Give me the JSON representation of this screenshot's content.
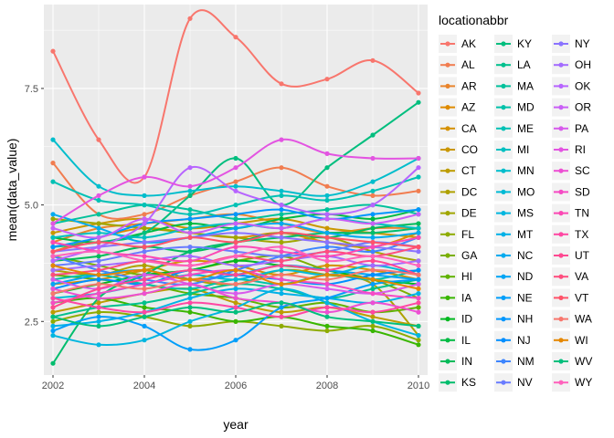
{
  "chart_data": {
    "type": "line",
    "xlabel": "year",
    "ylabel": "mean(data_value)",
    "xlim": [
      2001.8,
      2010.2
    ],
    "ylim": [
      1.35,
      9.3
    ],
    "x_ticks": [
      2002,
      2004,
      2006,
      2008,
      2010
    ],
    "x_tick_labels": [
      "2002",
      "2004",
      "2006",
      "2008",
      "2010"
    ],
    "y_ticks": [
      2.5,
      5.0,
      7.5
    ],
    "y_tick_labels": [
      "2.5",
      "5.0",
      "7.5"
    ],
    "grid": true,
    "legend": {
      "title": "locationabbr",
      "position": "right",
      "columns": 3
    },
    "background": "#ebebeb",
    "x": [
      2002,
      2003,
      2004,
      2005,
      2006,
      2007,
      2008,
      2009,
      2010
    ],
    "series": [
      {
        "name": "AK",
        "color": "#F8766D",
        "values": [
          8.3,
          6.4,
          5.6,
          9.0,
          8.6,
          7.6,
          7.7,
          8.1,
          7.4
        ]
      },
      {
        "name": "AL",
        "color": "#F17D50",
        "values": [
          5.9,
          4.8,
          4.8,
          5.2,
          5.5,
          5.8,
          5.4,
          5.2,
          5.3
        ]
      },
      {
        "name": "AR",
        "color": "#E9842C",
        "values": [
          4.2,
          4.5,
          4.6,
          4.7,
          4.8,
          4.6,
          4.4,
          4.5,
          4.5
        ]
      },
      {
        "name": "AZ",
        "color": "#DF8B00",
        "values": [
          4.0,
          4.3,
          4.5,
          4.4,
          4.3,
          4.4,
          4.2,
          4.1,
          4.4
        ]
      },
      {
        "name": "CA",
        "color": "#D59100",
        "values": [
          3.3,
          3.4,
          3.6,
          3.8,
          3.7,
          3.5,
          3.7,
          3.6,
          3.4
        ]
      },
      {
        "name": "CO",
        "color": "#CA9700",
        "values": [
          4.4,
          4.6,
          4.7,
          4.5,
          4.6,
          4.7,
          4.5,
          4.4,
          4.3
        ]
      },
      {
        "name": "CT",
        "color": "#BD9C00",
        "values": [
          2.7,
          2.9,
          3.1,
          3.2,
          2.9,
          2.7,
          2.8,
          2.6,
          2.4
        ]
      },
      {
        "name": "DC",
        "color": "#AFA100",
        "values": [
          3.6,
          3.5,
          3.7,
          3.4,
          3.3,
          3.6,
          3.5,
          3.3,
          2.2
        ]
      },
      {
        "name": "DE",
        "color": "#A0A600",
        "values": [
          4.7,
          4.6,
          4.5,
          4.4,
          4.3,
          4.2,
          4.3,
          4.0,
          3.8
        ]
      },
      {
        "name": "FL",
        "color": "#8EAB00",
        "values": [
          2.5,
          2.7,
          2.6,
          2.4,
          2.5,
          2.4,
          2.3,
          2.4,
          2.1
        ]
      },
      {
        "name": "GA",
        "color": "#7AAF00",
        "values": [
          3.9,
          3.7,
          3.5,
          3.6,
          3.8,
          3.9,
          3.6,
          3.4,
          3.0
        ]
      },
      {
        "name": "HI",
        "color": "#60B200",
        "values": [
          3.5,
          3.4,
          3.3,
          3.1,
          3.0,
          2.8,
          2.9,
          2.7,
          2.8
        ]
      },
      {
        "name": "IA",
        "color": "#39B600",
        "values": [
          2.9,
          3.0,
          2.8,
          2.7,
          2.5,
          2.6,
          2.4,
          2.3,
          2.0
        ]
      },
      {
        "name": "ID",
        "color": "#00B81F",
        "values": [
          3.1,
          3.3,
          3.5,
          3.6,
          3.8,
          3.7,
          3.6,
          3.4,
          3.3
        ]
      },
      {
        "name": "IL",
        "color": "#00BA42",
        "values": [
          4.3,
          4.2,
          4.4,
          4.6,
          4.5,
          4.7,
          4.8,
          4.7,
          4.9
        ]
      },
      {
        "name": "IN",
        "color": "#00BB5A",
        "values": [
          3.8,
          3.9,
          4.1,
          4.0,
          4.2,
          4.4,
          4.3,
          4.5,
          4.6
        ]
      },
      {
        "name": "KS",
        "color": "#00BD6D",
        "values": [
          1.6,
          3.0,
          3.5,
          4.0,
          4.2,
          4.3,
          4.4,
          4.4,
          4.5
        ]
      },
      {
        "name": "KY",
        "color": "#00BE7E",
        "values": [
          4.1,
          4.2,
          4.4,
          5.2,
          6.0,
          5.0,
          5.8,
          6.5,
          7.2
        ]
      },
      {
        "name": "LA",
        "color": "#00C08D",
        "values": [
          2.6,
          2.8,
          2.9,
          3.1,
          3.3,
          3.2,
          3.0,
          3.2,
          3.4
        ]
      },
      {
        "name": "MA",
        "color": "#00C19B",
        "values": [
          4.6,
          4.8,
          5.0,
          4.9,
          4.7,
          4.8,
          4.9,
          5.0,
          4.8
        ]
      },
      {
        "name": "MD",
        "color": "#00C1A9",
        "values": [
          3.4,
          3.5,
          3.3,
          3.2,
          3.4,
          3.3,
          3.5,
          3.4,
          3.6
        ]
      },
      {
        "name": "ME",
        "color": "#00C1B5",
        "values": [
          5.5,
          5.1,
          5.0,
          4.8,
          5.0,
          5.2,
          5.1,
          5.3,
          5.6
        ]
      },
      {
        "name": "MI",
        "color": "#00C0C1",
        "values": [
          4.3,
          4.4,
          4.3,
          4.5,
          4.6,
          4.5,
          4.7,
          4.6,
          4.5
        ]
      },
      {
        "name": "MN",
        "color": "#00BDCC",
        "values": [
          6.4,
          5.4,
          5.2,
          5.3,
          5.4,
          5.3,
          5.2,
          5.5,
          6.0
        ]
      },
      {
        "name": "MO",
        "color": "#00BAD5",
        "values": [
          3.0,
          3.1,
          3.3,
          3.5,
          3.4,
          3.6,
          3.5,
          3.7,
          3.5
        ]
      },
      {
        "name": "MS",
        "color": "#00B6DF",
        "values": [
          2.2,
          2.0,
          2.1,
          2.5,
          2.8,
          3.2,
          2.9,
          2.5,
          2.2
        ]
      },
      {
        "name": "MT",
        "color": "#00B1E7",
        "values": [
          2.4,
          2.5,
          2.7,
          3.0,
          3.2,
          3.1,
          3.0,
          2.9,
          3.1
        ]
      },
      {
        "name": "NC",
        "color": "#00ABEF",
        "values": [
          4.8,
          4.5,
          4.2,
          4.3,
          4.5,
          4.6,
          4.4,
          4.3,
          4.4
        ]
      },
      {
        "name": "ND",
        "color": "#00A5F5",
        "values": [
          3.3,
          3.5,
          3.6,
          3.4,
          3.5,
          3.7,
          3.6,
          3.5,
          3.4
        ]
      },
      {
        "name": "NE",
        "color": "#009EFA",
        "values": [
          2.3,
          2.6,
          2.4,
          1.9,
          2.1,
          2.8,
          3.0,
          3.3,
          3.4
        ]
      },
      {
        "name": "NH",
        "color": "#0096FE",
        "values": [
          4.1,
          4.3,
          4.6,
          4.7,
          4.8,
          4.9,
          4.7,
          4.8,
          4.9
        ]
      },
      {
        "name": "NJ",
        "color": "#008EFF",
        "values": [
          3.2,
          3.4,
          3.3,
          3.6,
          3.5,
          3.4,
          3.3,
          3.5,
          3.6
        ]
      },
      {
        "name": "NM",
        "color": "#3D85FF",
        "values": [
          3.9,
          3.6,
          3.4,
          3.3,
          3.6,
          3.9,
          4.1,
          4.0,
          4.3
        ]
      },
      {
        "name": "NV",
        "color": "#697CFF",
        "values": [
          3.7,
          3.8,
          4.0,
          4.1,
          4.0,
          3.9,
          4.0,
          4.2,
          4.1
        ]
      },
      {
        "name": "NY",
        "color": "#8A73FF",
        "values": [
          4.0,
          4.1,
          4.2,
          4.3,
          4.4,
          4.3,
          4.2,
          4.1,
          4.0
        ]
      },
      {
        "name": "OH",
        "color": "#A36BFF",
        "values": [
          3.6,
          3.7,
          3.8,
          3.9,
          3.7,
          3.8,
          3.9,
          3.7,
          3.8
        ]
      },
      {
        "name": "OK",
        "color": "#B764FF",
        "values": [
          3.8,
          4.1,
          4.6,
          5.8,
          5.3,
          5.0,
          4.8,
          5.0,
          5.8
        ]
      },
      {
        "name": "OR",
        "color": "#C95FF6",
        "values": [
          4.5,
          4.3,
          4.7,
          4.4,
          4.6,
          4.5,
          4.7,
          4.6,
          4.8
        ]
      },
      {
        "name": "PA",
        "color": "#D75AEC",
        "values": [
          3.4,
          3.2,
          3.5,
          3.3,
          3.1,
          3.3,
          3.2,
          3.1,
          3.3
        ]
      },
      {
        "name": "RI",
        "color": "#E354E1",
        "values": [
          4.6,
          5.2,
          5.6,
          5.4,
          5.8,
          6.4,
          6.1,
          6.0,
          6.0
        ]
      },
      {
        "name": "SC",
        "color": "#ED4FD3",
        "values": [
          3.2,
          3.0,
          3.1,
          3.3,
          3.0,
          2.9,
          2.7,
          2.9,
          2.7
        ]
      },
      {
        "name": "SD",
        "color": "#F54BC4",
        "values": [
          2.9,
          3.1,
          3.3,
          3.5,
          3.6,
          3.4,
          3.3,
          3.1,
          3.0
        ]
      },
      {
        "name": "TN",
        "color": "#FB48B4",
        "values": [
          4.2,
          4.0,
          3.9,
          3.8,
          4.1,
          4.0,
          3.9,
          4.1,
          4.3
        ]
      },
      {
        "name": "TX",
        "color": "#FF47A3",
        "values": [
          3.0,
          2.8,
          2.7,
          2.9,
          2.8,
          2.6,
          2.8,
          2.7,
          2.9
        ]
      },
      {
        "name": "UT",
        "color": "#FF4991",
        "values": [
          2.8,
          3.2,
          3.4,
          3.6,
          3.5,
          3.7,
          3.6,
          3.8,
          3.5
        ]
      },
      {
        "name": "VA",
        "color": "#FF4D7E",
        "values": [
          3.5,
          3.6,
          3.8,
          3.7,
          3.9,
          3.8,
          4.0,
          3.9,
          4.1
        ]
      },
      {
        "name": "VT",
        "color": "#FF5369",
        "values": [
          4.0,
          4.2,
          4.1,
          4.3,
          4.2,
          4.4,
          4.3,
          4.2,
          4.1
        ]
      },
      {
        "name": "WA",
        "color": "#F8766D",
        "values": [
          3.1,
          3.3,
          3.2,
          3.4,
          3.3,
          3.5,
          3.4,
          3.6,
          3.5
        ]
      },
      {
        "name": "WI",
        "color": "#E58700",
        "values": [
          3.7,
          3.5,
          3.6,
          3.4,
          3.6,
          3.3,
          3.5,
          3.4,
          3.2
        ]
      },
      {
        "name": "WV",
        "color": "#00BF7D",
        "values": [
          2.6,
          2.4,
          2.6,
          2.8,
          2.7,
          2.9,
          2.6,
          2.5,
          2.4
        ]
      },
      {
        "name": "WY",
        "color": "#FF62BC",
        "values": [
          3.9,
          4.0,
          3.8,
          3.7,
          3.9,
          4.1,
          3.8,
          3.9,
          3.7
        ]
      }
    ]
  }
}
